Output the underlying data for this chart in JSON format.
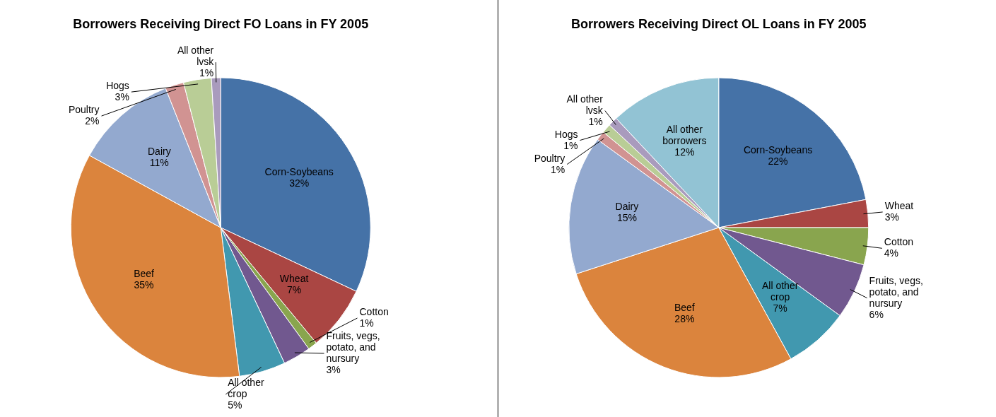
{
  "chart_data": [
    {
      "type": "pie",
      "title": "Borrowers Receiving Direct FO Loans in FY 2005",
      "categories": [
        "Corn-Soybeans",
        "Wheat",
        "Cotton",
        "Fruits, vegs, potato, and nursury",
        "All other crop",
        "Beef",
        "Dairy",
        "Poultry",
        "Hogs",
        "All other lvsk"
      ],
      "values": [
        32,
        7,
        1,
        3,
        5,
        35,
        11,
        2,
        3,
        1
      ],
      "value_labels": [
        "32%",
        "7%",
        "1%",
        "3%",
        "5%",
        "35%",
        "11%",
        "2%",
        "3%",
        "1%"
      ],
      "colors": [
        "#4572a7",
        "#aa4643",
        "#89a54e",
        "#71588f",
        "#4198af",
        "#db843d",
        "#93a9cf",
        "#d19392",
        "#b9cd96",
        "#a99bbd"
      ]
    },
    {
      "type": "pie",
      "title": "Borrowers Receiving Direct OL Loans in FY 2005",
      "categories": [
        "Corn-Soybeans",
        "Wheat",
        "Cotton",
        "Fruits, vegs, potato, and nursury",
        "All other crop",
        "Beef",
        "Dairy",
        "Poultry",
        "Hogs",
        "All other lvsk",
        "All other borrowers"
      ],
      "values": [
        22,
        3,
        4,
        6,
        7,
        28,
        15,
        1,
        1,
        1,
        12
      ],
      "value_labels": [
        "22%",
        "3%",
        "4%",
        "6%",
        "7%",
        "28%",
        "15%",
        "1%",
        "1%",
        "1%",
        "12%"
      ],
      "colors": [
        "#4572a7",
        "#aa4643",
        "#89a54e",
        "#71588f",
        "#4198af",
        "#db843d",
        "#93a9cf",
        "#d19392",
        "#b9cd96",
        "#a99bbd",
        "#92c3d4"
      ]
    }
  ]
}
